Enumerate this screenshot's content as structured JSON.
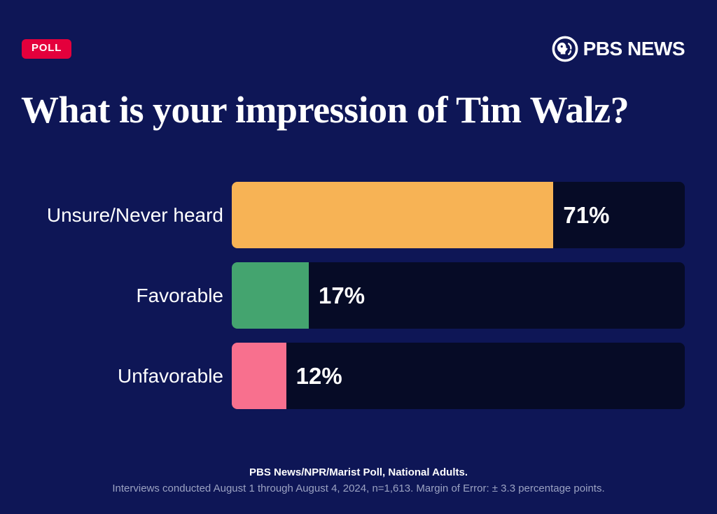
{
  "header": {
    "badge_label": "POLL",
    "brand_name": "PBS NEWS"
  },
  "title": "What is your impression of Tim Walz?",
  "chart_data": {
    "type": "bar",
    "orientation": "horizontal",
    "title": "What is your impression of Tim Walz?",
    "categories": [
      "Unsure/Never heard",
      "Favorable",
      "Unfavorable"
    ],
    "values": [
      71,
      17,
      12
    ],
    "value_labels": [
      "71%",
      "17%",
      "12%"
    ],
    "bar_colors": [
      "#f7b355",
      "#44a46f",
      "#f8708e"
    ],
    "track_color": "#060b26",
    "xlim": [
      0,
      100
    ],
    "grid": false,
    "legend": false
  },
  "footer": {
    "line1": "PBS News/NPR/Marist Poll, National Adults.",
    "line2": "Interviews conducted August 1 through August 4, 2024, n=1,613. Margin of Error: ± 3.3 percentage points."
  },
  "colors": {
    "background": "#0e1656",
    "badge_red": "#e4003c",
    "track": "#060b26",
    "text_white": "#ffffff",
    "text_muted": "#9ba2c2"
  },
  "icons": {
    "brand_logo": "pbs-head-logo-icon"
  }
}
